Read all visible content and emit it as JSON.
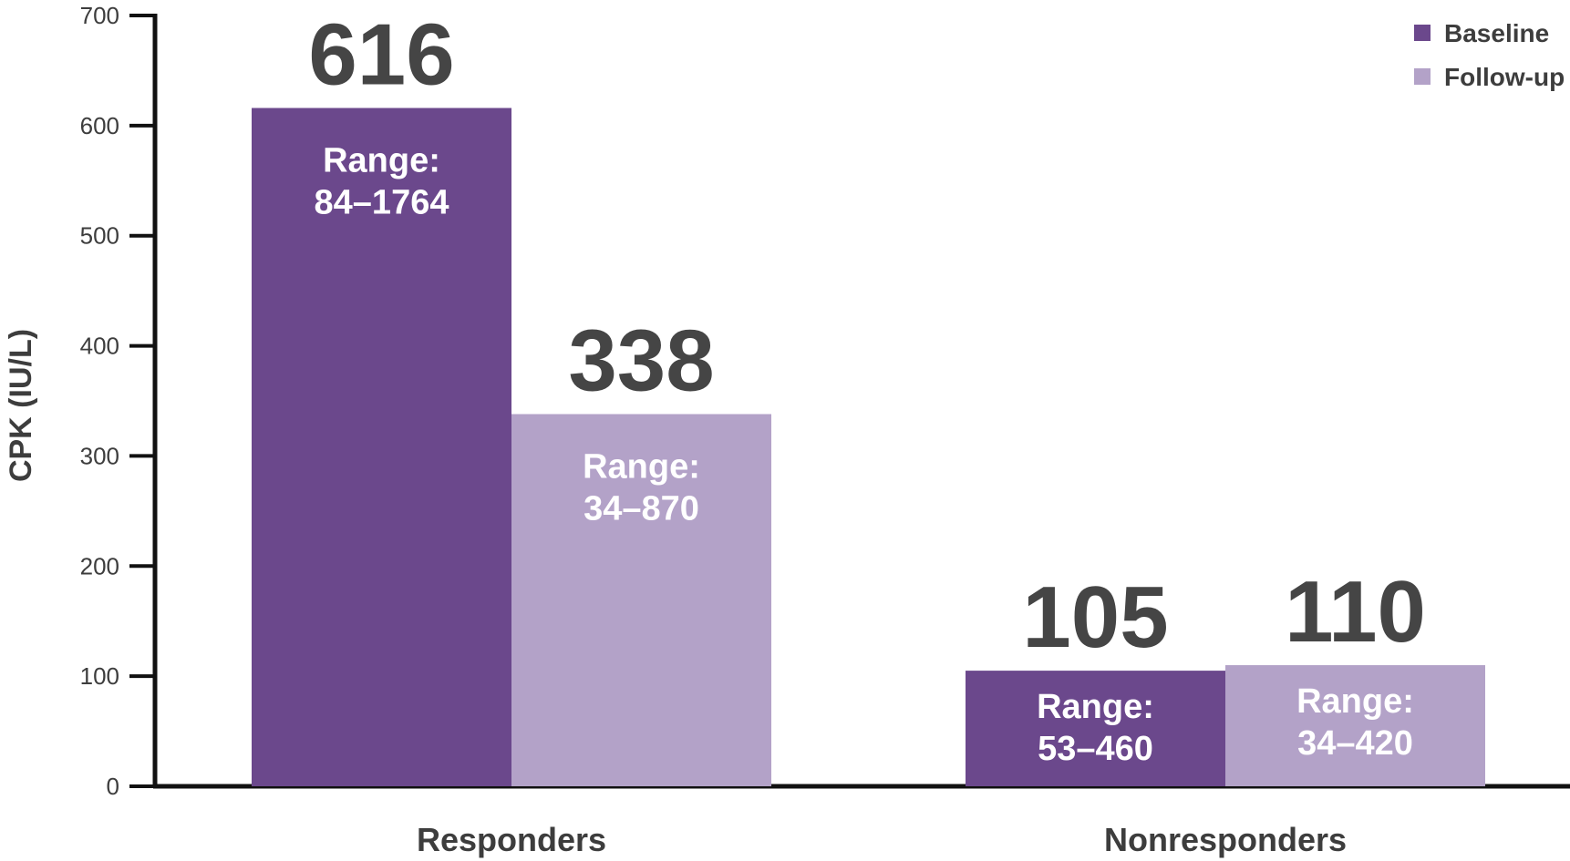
{
  "chart_data": {
    "type": "bar",
    "categories": [
      "Responders",
      "Nonresponders"
    ],
    "series": [
      {
        "name": "Baseline",
        "values": [
          616,
          105
        ],
        "ranges": [
          "84–1764",
          "53–460"
        ],
        "color": "#6b488c"
      },
      {
        "name": "Follow-up",
        "values": [
          338,
          110
        ],
        "ranges": [
          "34–870",
          "34–420"
        ],
        "color": "#b3a2c8"
      }
    ],
    "range_prefix": "Range:",
    "ylabel": "CPK (IU/L)",
    "xlabel": "",
    "title": "",
    "ylim": [
      0,
      700
    ],
    "yticks": [
      0,
      100,
      200,
      300,
      400,
      500,
      600,
      700
    ],
    "legend_position": "top-right",
    "grid": false,
    "axis_color": "#111111"
  }
}
